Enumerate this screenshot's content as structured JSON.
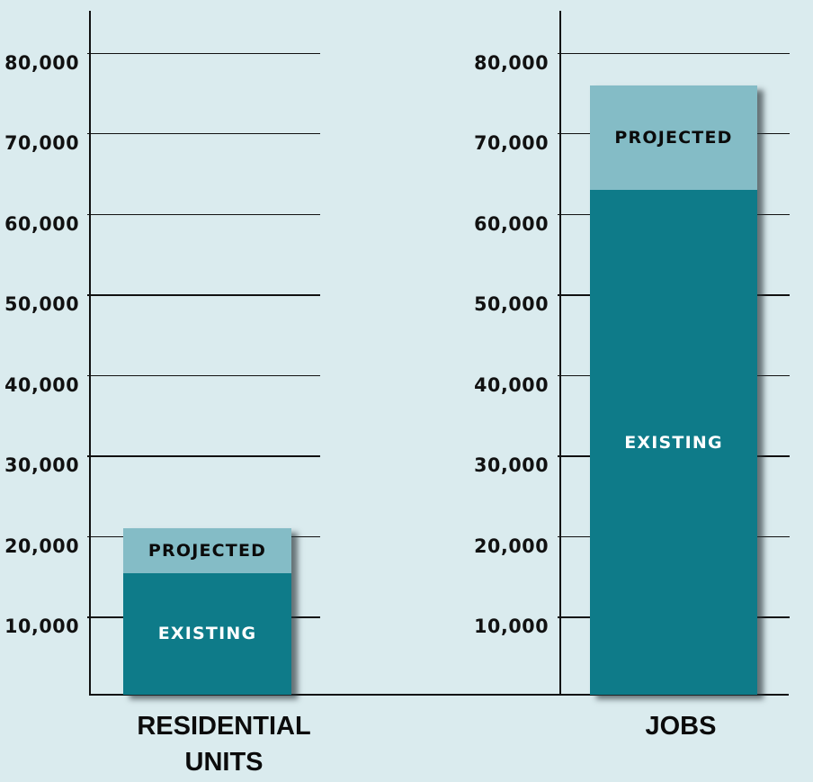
{
  "colors": {
    "background": "#DAEBEE",
    "existing": "#0E7B89",
    "projected": "#84BCC6",
    "axis": "#111111"
  },
  "legend_labels": {
    "projected": "PROJECTED",
    "existing": "EXISTING"
  },
  "y_ticks": [
    "80,000",
    "70,000",
    "60,000",
    "50,000",
    "40,000",
    "30,000",
    "20,000",
    "10,000"
  ],
  "panels": [
    {
      "category": "RESIDENTIAL UNITS",
      "category_line1": "RESIDENTIAL",
      "category_line2": "UNITS",
      "existing_label": "EXISTING",
      "projected_label": "PROJECTED"
    },
    {
      "category": "JOBS",
      "category_line1": "JOBS",
      "category_line2": "",
      "existing_label": "EXISTING",
      "projected_label": "PROJECTED"
    }
  ],
  "chart_data": {
    "type": "bar",
    "stacked": true,
    "title": "",
    "categories": [
      "RESIDENTIAL UNITS",
      "JOBS"
    ],
    "series": [
      {
        "name": "EXISTING",
        "color": "#0E7B89",
        "values": [
          15500,
          63000
        ]
      },
      {
        "name": "PROJECTED",
        "color": "#84BCC6",
        "values": [
          5500,
          13000
        ]
      }
    ],
    "totals": [
      21000,
      76000
    ],
    "xlabel": "",
    "ylabel": "",
    "ylim": [
      0,
      85000
    ],
    "y_tick_values": [
      10000,
      20000,
      30000,
      40000,
      50000,
      60000,
      70000,
      80000
    ],
    "y_tick_labels": [
      "10,000",
      "20,000",
      "30,000",
      "40,000",
      "50,000",
      "60,000",
      "70,000",
      "80,000"
    ],
    "grid": true,
    "legend": "inline segment labels",
    "layout": "two side-by-side panels, each with its own y-axis"
  }
}
